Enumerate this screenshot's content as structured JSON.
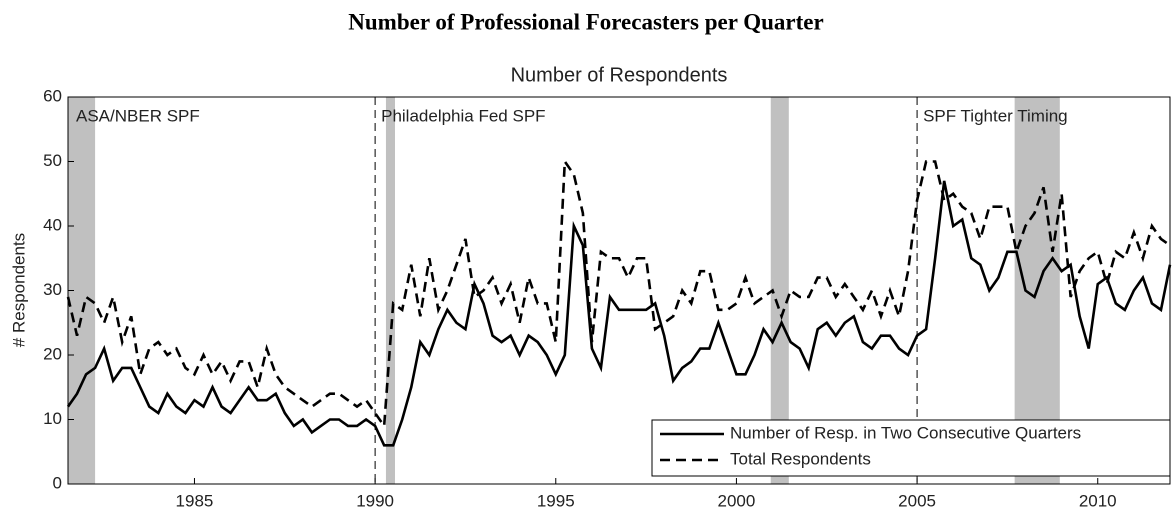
{
  "chart_data": {
    "type": "line",
    "title": "Number of Professional Forecasters per Quarter",
    "subtitle": "Number of Respondents",
    "y_label": "# Respondents",
    "x": [
      1981.5,
      1981.75,
      1982,
      1982.25,
      1982.5,
      1982.75,
      1983,
      1983.25,
      1983.5,
      1983.75,
      1984,
      1984.25,
      1984.5,
      1984.75,
      1985,
      1985.25,
      1985.5,
      1985.75,
      1986,
      1986.25,
      1986.5,
      1986.75,
      1987,
      1987.25,
      1987.5,
      1987.75,
      1988,
      1988.25,
      1988.5,
      1988.75,
      1989,
      1989.25,
      1989.5,
      1989.75,
      1990,
      1990.25,
      1990.5,
      1990.75,
      1991,
      1991.25,
      1991.5,
      1991.75,
      1992,
      1992.25,
      1992.5,
      1992.75,
      1993,
      1993.25,
      1993.5,
      1993.75,
      1994,
      1994.25,
      1994.5,
      1994.75,
      1995,
      1995.25,
      1995.5,
      1995.75,
      1996,
      1996.25,
      1996.5,
      1996.75,
      1997,
      1997.25,
      1997.5,
      1997.75,
      1998,
      1998.25,
      1998.5,
      1998.75,
      1999,
      1999.25,
      1999.5,
      1999.75,
      2000,
      2000.25,
      2000.5,
      2000.75,
      2001,
      2001.25,
      2001.5,
      2001.75,
      2002,
      2002.25,
      2002.5,
      2002.75,
      2003,
      2003.25,
      2003.5,
      2003.75,
      2004,
      2004.25,
      2004.5,
      2004.75,
      2005,
      2005.25,
      2005.5,
      2005.75,
      2006,
      2006.25,
      2006.5,
      2006.75,
      2007,
      2007.25,
      2007.5,
      2007.75,
      2008,
      2008.25,
      2008.5,
      2008.75,
      2009,
      2009.25,
      2009.5,
      2009.75,
      2010,
      2010.25,
      2010.5,
      2010.75,
      2011,
      2011.25,
      2011.5,
      2011.75,
      2012
    ],
    "series": [
      {
        "name": "Number of Resp. in Two Consecutive Quarters",
        "color": "#000000",
        "dash": "solid",
        "values": [
          12,
          14,
          17,
          18,
          21,
          16,
          18,
          18,
          15,
          12,
          11,
          14,
          12,
          11,
          13,
          12,
          15,
          12,
          11,
          13,
          15,
          13,
          13,
          14,
          11,
          9,
          10,
          8,
          9,
          10,
          10,
          9,
          9,
          10,
          9,
          6,
          6,
          10,
          15,
          22,
          20,
          24,
          27,
          25,
          24,
          31,
          28,
          23,
          22,
          23,
          20,
          23,
          22,
          20,
          17,
          20,
          40,
          37,
          21,
          18,
          29,
          27,
          27,
          27,
          27,
          28,
          23,
          16,
          18,
          19,
          21,
          21,
          25,
          21,
          17,
          17,
          20,
          24,
          22,
          25,
          22,
          21,
          18,
          24,
          25,
          23,
          25,
          26,
          22,
          21,
          23,
          23,
          21,
          20,
          23,
          24,
          35,
          47,
          40,
          41,
          35,
          34,
          30,
          32,
          36,
          36,
          30,
          29,
          33,
          35,
          33,
          34,
          26,
          21,
          31,
          32,
          28,
          27,
          30,
          32,
          28,
          27,
          34
        ]
      },
      {
        "name": "Total Respondents",
        "color": "#000000",
        "dash": "dashed",
        "values": [
          29,
          23,
          29,
          28,
          25,
          29,
          22,
          26,
          17,
          21,
          22,
          20,
          21,
          18,
          17,
          20,
          17,
          19,
          16,
          19,
          19,
          15,
          21,
          17,
          15,
          14,
          13,
          12,
          13,
          14,
          14,
          13,
          12,
          13,
          11,
          9,
          28,
          27,
          34,
          26,
          35,
          27,
          30,
          34,
          38,
          29,
          30,
          32,
          28,
          31,
          25,
          32,
          28,
          28,
          22,
          50,
          48,
          42,
          22,
          36,
          35,
          35,
          32,
          35,
          35,
          24,
          25,
          26,
          30,
          28,
          33,
          33,
          27,
          27,
          28,
          32,
          28,
          29,
          30,
          26,
          30,
          29,
          29,
          32,
          32,
          29,
          31,
          29,
          27,
          30,
          26,
          30,
          26,
          33,
          44,
          50,
          50,
          44,
          45,
          43,
          42,
          38,
          43,
          43,
          43,
          36,
          40,
          42,
          46,
          36,
          45,
          29,
          33,
          35,
          36,
          31,
          36,
          35,
          39,
          35,
          40,
          38,
          37
        ]
      }
    ],
    "xlim": [
      1981.5,
      2012
    ],
    "ylim": [
      0,
      60
    ],
    "xticks": [
      1985,
      1990,
      1995,
      2000,
      2005,
      2010
    ],
    "yticks": [
      0,
      10,
      20,
      30,
      40,
      50,
      60
    ],
    "shaded_periods": [
      [
        1981.5,
        1982.25
      ],
      [
        1990.3,
        1990.55
      ],
      [
        2000.95,
        2001.45
      ],
      [
        2007.7,
        2008.95
      ]
    ],
    "shade_color": "#c0c0c0",
    "vlines": [
      1990.0,
      2005.0
    ],
    "annotations": [
      "ASA/NBER SPF",
      "Philadelphia Fed SPF",
      "SPF Tighter Timing"
    ],
    "legend": "lower right"
  }
}
